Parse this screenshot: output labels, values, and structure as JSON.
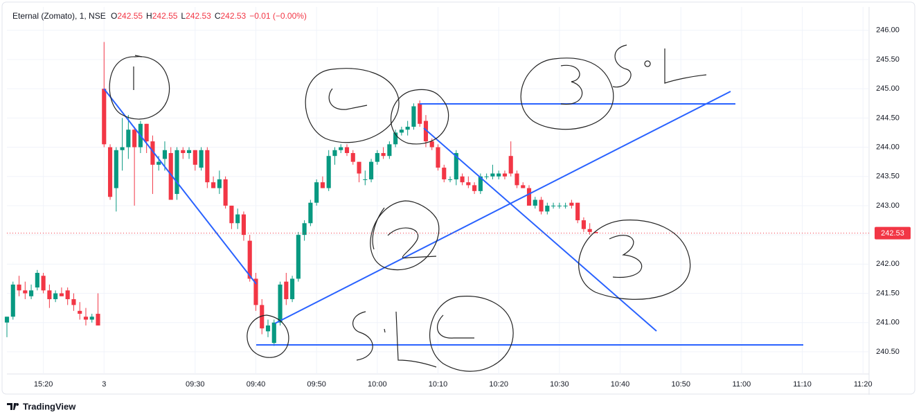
{
  "chart_data": {
    "type": "candlestick",
    "symbol": "Eternal (Zomato), 1, NSE",
    "ohlc_legend": [
      {
        "label": "O",
        "value": 242.55
      },
      {
        "label": "H",
        "value": 242.55
      },
      {
        "label": "L",
        "value": 242.53
      },
      {
        "label": "C",
        "value": 242.53
      }
    ],
    "change": "−0.01 (−0.00%)",
    "last_price": 242.53,
    "brand": "TradingView",
    "up_color": "#089981",
    "down_color": "#f23645",
    "drawing_color": "#2962ff",
    "grid": true,
    "x": [
      0,
      1,
      2,
      3,
      4,
      5,
      6,
      7,
      8,
      9,
      10,
      11,
      12,
      13,
      14,
      15,
      16,
      17,
      18,
      19,
      20,
      21,
      22,
      23,
      24,
      25,
      26,
      27,
      28,
      29,
      30,
      31,
      32,
      33,
      34,
      35,
      36,
      37,
      38,
      39,
      40,
      41,
      42,
      43,
      44,
      45,
      46,
      47,
      48,
      49,
      50,
      51,
      52,
      53,
      54,
      55,
      56,
      57,
      58,
      59,
      60,
      61,
      62,
      63,
      64,
      65,
      66,
      67,
      68,
      69,
      70,
      71,
      72,
      73,
      74,
      75,
      76,
      77,
      78,
      79,
      80,
      81,
      82,
      83,
      84,
      85,
      86,
      87,
      88,
      89,
      90,
      91,
      92,
      93,
      94,
      95,
      96,
      97
    ],
    "open": [
      241.0,
      241.1,
      241.65,
      241.55,
      241.45,
      241.6,
      241.8,
      241.55,
      241.4,
      241.5,
      241.55,
      241.4,
      241.2,
      241.1,
      241.05,
      241.15,
      245.0,
      244.0,
      243.3,
      243.95,
      244.0,
      244.3,
      244.0,
      244.4,
      244.1,
      243.7,
      243.8,
      243.9,
      243.2,
      243.95,
      243.9,
      243.95,
      243.65,
      243.95,
      243.4,
      243.3,
      243.45,
      243.0,
      242.7,
      242.85,
      242.4,
      241.75,
      241.3,
      240.85,
      240.65,
      241.0,
      241.7,
      241.4,
      241.75,
      242.5,
      242.7,
      243.05,
      243.4,
      243.3,
      243.85,
      243.95,
      244.0,
      243.9,
      243.75,
      243.45,
      243.45,
      243.75,
      243.9,
      243.85,
      244.05,
      244.25,
      244.3,
      244.35,
      244.75,
      244.45,
      244.1,
      244.0,
      243.65,
      243.45,
      243.45,
      243.5,
      243.4,
      243.35,
      243.25,
      243.5,
      243.5,
      243.5,
      243.55,
      243.85,
      243.55,
      243.35,
      243.3,
      243.0,
      243.1,
      242.9,
      243.0,
      243.0,
      243.0,
      243.05,
      243.05,
      242.75,
      242.6,
      242.55
    ],
    "high": [
      241.1,
      241.7,
      241.8,
      241.7,
      241.65,
      241.9,
      241.85,
      241.65,
      241.55,
      241.6,
      241.6,
      241.5,
      241.35,
      241.25,
      241.15,
      241.5,
      245.8,
      244.05,
      244.0,
      244.5,
      244.55,
      244.35,
      244.45,
      244.4,
      244.2,
      243.85,
      244.1,
      244.0,
      244.0,
      244.0,
      244.0,
      243.95,
      244.0,
      244.0,
      243.5,
      243.6,
      243.5,
      243.0,
      242.95,
      242.9,
      242.5,
      241.85,
      241.4,
      241.05,
      241.05,
      241.7,
      241.85,
      241.8,
      242.55,
      242.75,
      243.1,
      243.45,
      243.5,
      243.95,
      244.0,
      244.05,
      244.05,
      243.95,
      243.75,
      243.6,
      243.8,
      243.95,
      244.0,
      244.1,
      244.3,
      244.35,
      244.45,
      244.75,
      244.8,
      244.55,
      244.15,
      244.05,
      243.7,
      243.5,
      243.95,
      243.55,
      243.5,
      243.4,
      243.55,
      243.55,
      243.7,
      243.6,
      243.6,
      244.1,
      243.6,
      243.4,
      243.35,
      243.15,
      243.15,
      243.05,
      243.05,
      243.05,
      243.05,
      243.1,
      243.05,
      242.8,
      242.7,
      242.55
    ],
    "low": [
      240.75,
      241.05,
      241.45,
      241.4,
      241.4,
      241.55,
      241.5,
      241.25,
      241.35,
      241.45,
      241.3,
      241.2,
      241.05,
      240.95,
      241.0,
      240.95,
      244.0,
      243.1,
      242.9,
      243.6,
      243.8,
      243.0,
      243.9,
      243.9,
      243.2,
      243.6,
      243.6,
      243.1,
      243.1,
      243.8,
      243.8,
      243.6,
      243.6,
      243.3,
      243.3,
      243.2,
      242.95,
      242.6,
      242.6,
      242.4,
      241.7,
      241.2,
      240.8,
      240.75,
      240.6,
      240.95,
      241.3,
      241.35,
      241.7,
      242.4,
      242.65,
      243.0,
      243.3,
      243.25,
      243.7,
      243.9,
      243.85,
      243.7,
      243.4,
      243.35,
      243.4,
      243.7,
      243.8,
      243.8,
      244.0,
      244.2,
      244.2,
      244.3,
      244.35,
      244.0,
      243.95,
      243.6,
      243.4,
      243.4,
      243.35,
      243.35,
      243.3,
      243.2,
      243.2,
      243.45,
      243.45,
      243.45,
      243.45,
      243.5,
      243.3,
      243.3,
      243.0,
      242.95,
      242.85,
      242.85,
      242.95,
      242.95,
      242.95,
      242.95,
      242.7,
      242.55,
      242.5,
      242.53
    ],
    "close": [
      241.1,
      241.65,
      241.55,
      241.5,
      241.55,
      241.85,
      241.55,
      241.4,
      241.5,
      241.45,
      241.4,
      241.3,
      241.15,
      241.05,
      241.1,
      240.95,
      244.05,
      243.15,
      243.95,
      244.0,
      244.3,
      244.0,
      244.4,
      244.1,
      243.7,
      243.75,
      243.95,
      243.1,
      243.95,
      243.9,
      243.95,
      243.7,
      243.95,
      243.4,
      243.3,
      243.45,
      243.0,
      242.7,
      242.85,
      242.5,
      241.75,
      241.3,
      240.9,
      240.95,
      241.0,
      241.65,
      241.4,
      241.75,
      242.5,
      242.7,
      243.05,
      243.4,
      243.3,
      243.85,
      243.95,
      244.0,
      243.9,
      243.75,
      243.55,
      243.45,
      243.75,
      243.9,
      243.85,
      244.05,
      244.25,
      244.3,
      244.35,
      244.7,
      244.4,
      244.1,
      244.0,
      243.65,
      243.45,
      243.45,
      243.9,
      243.4,
      243.35,
      243.25,
      243.5,
      243.5,
      243.55,
      243.55,
      243.5,
      243.55,
      243.35,
      243.3,
      243.0,
      243.1,
      242.9,
      243.0,
      243.0,
      243.0,
      243.0,
      243.0,
      242.75,
      242.6,
      242.55,
      242.53
    ],
    "xlim": [
      0,
      142
    ],
    "xticks": [
      {
        "value": 6,
        "label": "15:20"
      },
      {
        "value": 16,
        "label": "3"
      },
      {
        "value": 31,
        "label": "09:30"
      },
      {
        "value": 41,
        "label": "09:40"
      },
      {
        "value": 51,
        "label": "09:50"
      },
      {
        "value": 61,
        "label": "10:00"
      },
      {
        "value": 71,
        "label": "10:10"
      },
      {
        "value": 81,
        "label": "10:20"
      },
      {
        "value": 91,
        "label": "10:30"
      },
      {
        "value": 101,
        "label": "10:40"
      },
      {
        "value": 111,
        "label": "10:50"
      },
      {
        "value": 121,
        "label": "11:00"
      },
      {
        "value": 131,
        "label": "11:10"
      },
      {
        "value": 141,
        "label": "11:20"
      }
    ],
    "ylim": [
      240.12,
      246.4
    ],
    "yticks": [
      {
        "value": 240.5,
        "label": "240.50"
      },
      {
        "value": 241,
        "label": "241.00"
      },
      {
        "value": 241.5,
        "label": "241.50"
      },
      {
        "value": 242,
        "label": "242.00"
      },
      {
        "value": 242.5,
        "label": "242.50"
      },
      {
        "value": 243,
        "label": "243.00"
      },
      {
        "value": 243.5,
        "label": "243.50"
      },
      {
        "value": 244,
        "label": "244.00"
      },
      {
        "value": 244.5,
        "label": "244.50"
      },
      {
        "value": 245,
        "label": "245.00"
      },
      {
        "value": 245.5,
        "label": "245.50"
      },
      {
        "value": 246,
        "label": "246.00"
      }
    ]
  }
}
